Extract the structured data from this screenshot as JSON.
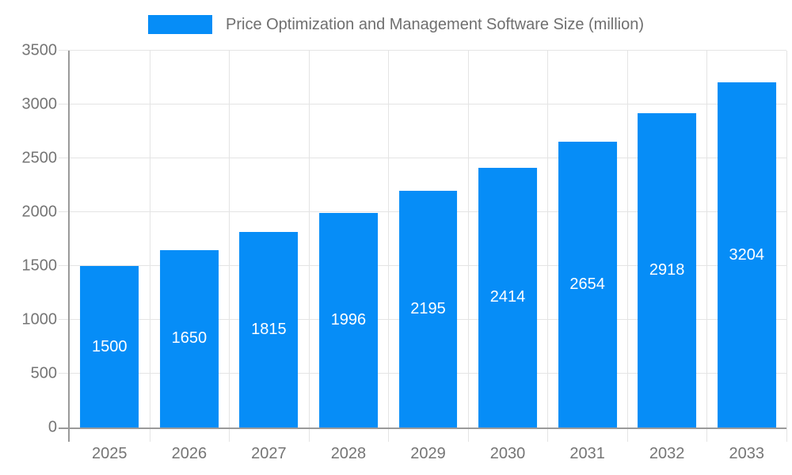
{
  "legend": {
    "label": "Price Optimization and Management Software Size (million)"
  },
  "chart_data": {
    "type": "bar",
    "title": "Price Optimization and Management Software Size (million)",
    "categories": [
      "2025",
      "2026",
      "2027",
      "2028",
      "2029",
      "2030",
      "2031",
      "2032",
      "2033"
    ],
    "values": [
      1500,
      1650,
      1815,
      1996,
      2195,
      2414,
      2654,
      2918,
      3204
    ],
    "xlabel": "",
    "ylabel": "",
    "ylim": [
      0,
      3500
    ],
    "yticks": [
      0,
      500,
      1000,
      1500,
      2000,
      2500,
      3000,
      3500
    ],
    "grid": true,
    "legend_position": "top-center",
    "bar_labels_visible": true
  },
  "colors": {
    "bar": "#068df7",
    "bar_label": "#ffffff",
    "axis_text": "#757575",
    "legend_text": "#6f6f6f",
    "grid_line": "#e4e4e4",
    "axis_line": "#9a9a9a",
    "background": "#ffffff"
  }
}
